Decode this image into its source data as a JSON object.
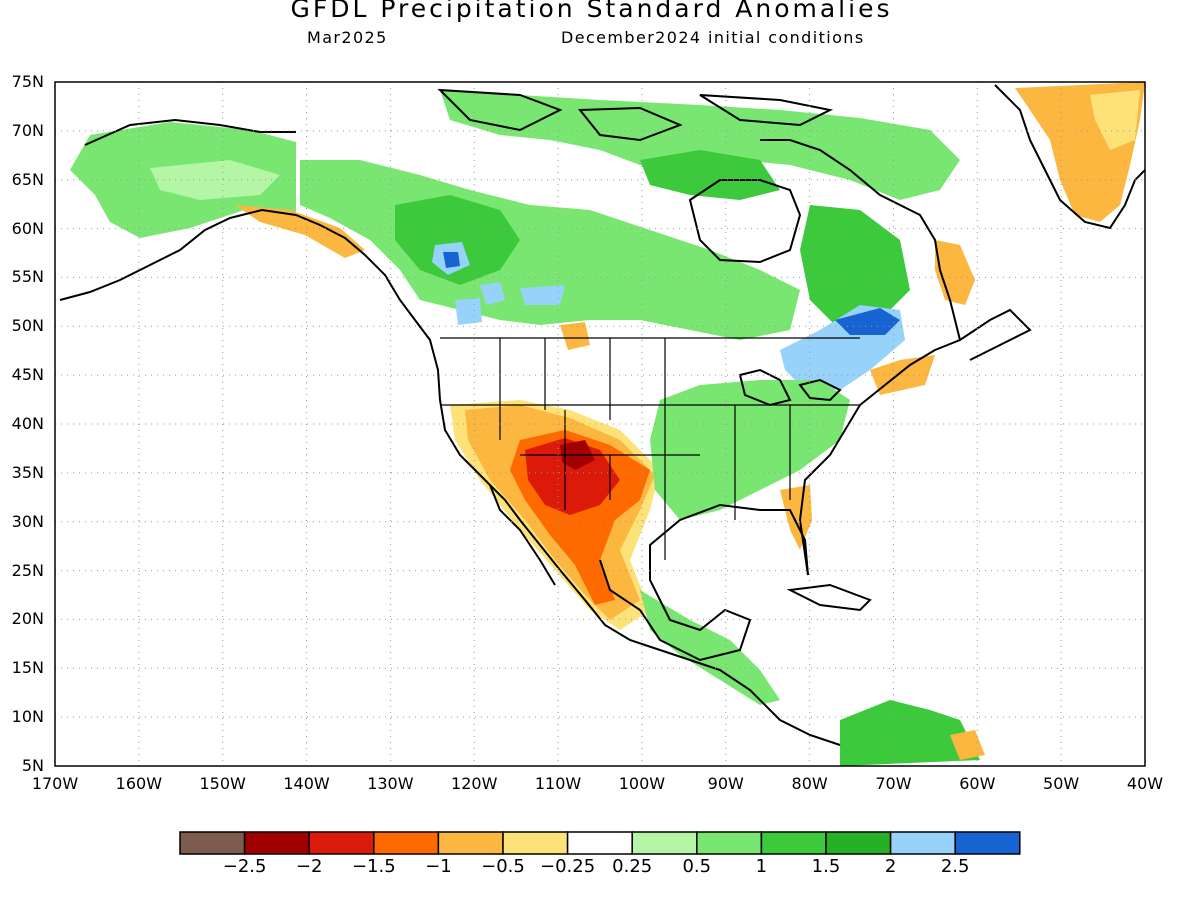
{
  "header": {
    "title": "GFDL  Precipitation  Standard  Anomalies",
    "month": "Mar2025",
    "init": "December2024  initial  conditions"
  },
  "axes": {
    "lat_labels": [
      "75N",
      "70N",
      "65N",
      "60N",
      "55N",
      "50N",
      "45N",
      "40N",
      "35N",
      "30N",
      "25N",
      "20N",
      "15N",
      "10N",
      "5N"
    ],
    "lon_labels": [
      "170W",
      "160W",
      "150W",
      "140W",
      "130W",
      "120W",
      "110W",
      "100W",
      "90W",
      "80W",
      "70W",
      "60W",
      "50W",
      "40W"
    ]
  },
  "colorbar": {
    "colors": [
      "#7d5b4f",
      "#a10000",
      "#dc1a0a",
      "#ff6a00",
      "#fbb73f",
      "#fde27a",
      "#ffffff",
      "#b4f5a6",
      "#78e670",
      "#3cc93c",
      "#25b025",
      "#96d2fa",
      "#1863d2"
    ],
    "labels": [
      "−2.5",
      "−2",
      "−1.5",
      "−1",
      "−0.5",
      "−0.25",
      "0.25",
      "0.5",
      "1",
      "1.5",
      "2",
      "2.5"
    ]
  },
  "palette": {
    "light_green": "#b4f5a6",
    "green": "#78e670",
    "mid_green": "#3cc93c",
    "dark_green": "#25b025",
    "light_blue": "#96d2fa",
    "blue": "#1863d2",
    "yellow": "#fde27a",
    "orange_light": "#fbb73f",
    "orange": "#ff6a00",
    "red": "#dc1a0a",
    "dark_red": "#a10000"
  }
}
